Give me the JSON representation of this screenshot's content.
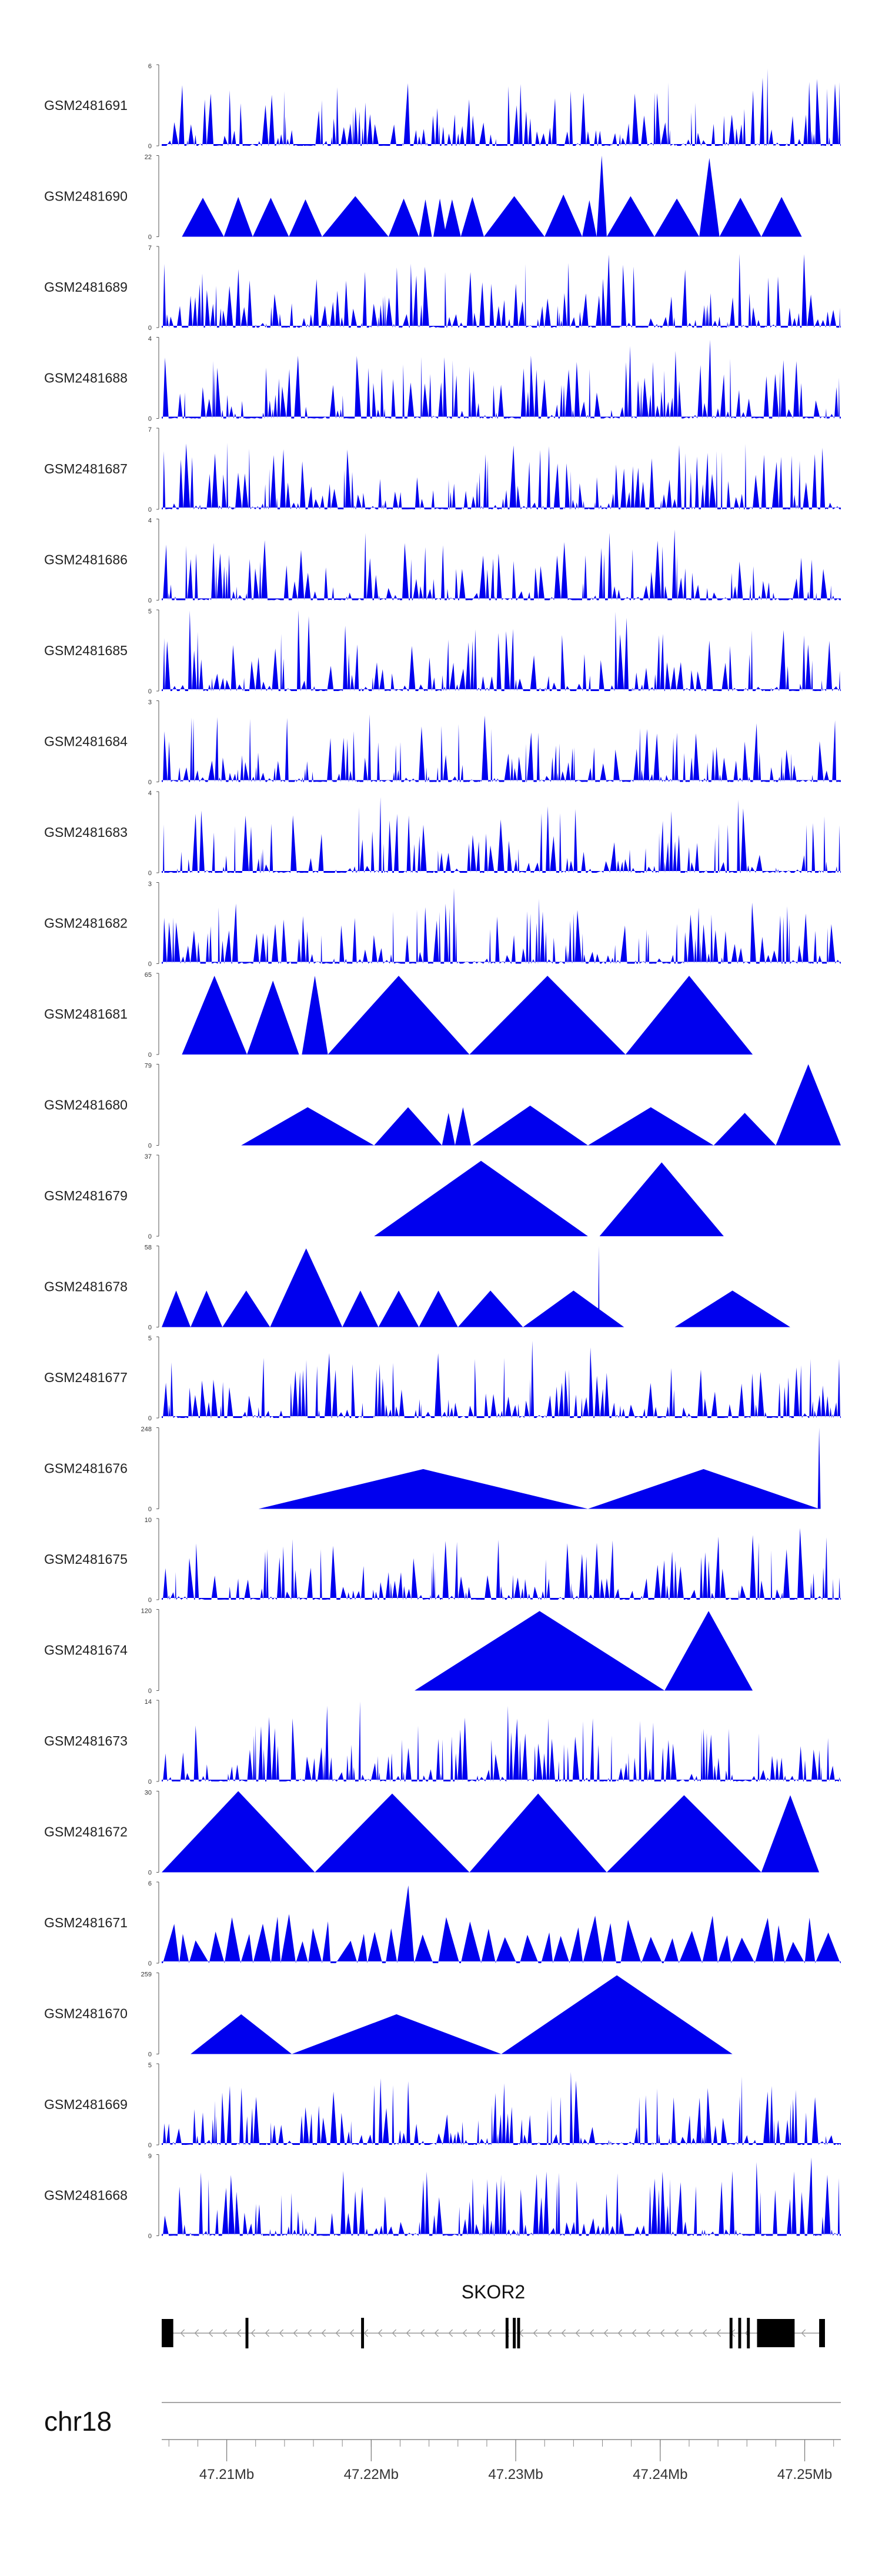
{
  "chart_data": {
    "type": "area",
    "chromosome": "chr18",
    "region_mb": [
      47.2055,
      47.2525
    ],
    "fill_color": "#0000ee",
    "tracks": [
      {
        "name": "GSM2481691",
        "ymax": "6",
        "ymin": "0",
        "peak": 6,
        "style": "dense",
        "seed": 1
      },
      {
        "name": "GSM2481690",
        "ymax": "22",
        "ymin": "0",
        "peak": 22,
        "style": "sparse",
        "seed": 2,
        "segments": [
          [
            47.2069,
            47.2098,
            0.48
          ],
          [
            47.2098,
            47.2118,
            0.49
          ],
          [
            47.2118,
            47.2143,
            0.48
          ],
          [
            47.2143,
            47.2166,
            0.46
          ],
          [
            47.2166,
            47.2212,
            0.5
          ],
          [
            47.2212,
            47.2233,
            0.47
          ],
          [
            47.2233,
            47.2242,
            0.46
          ],
          [
            47.2243,
            47.2252,
            0.47
          ],
          [
            47.225,
            47.2262,
            0.46
          ],
          [
            47.2262,
            47.2278,
            0.49
          ],
          [
            47.2278,
            47.232,
            0.5
          ],
          [
            47.232,
            47.2346,
            0.52
          ],
          [
            47.2346,
            47.2356,
            0.45
          ],
          [
            47.2356,
            47.2363,
            1.0
          ],
          [
            47.2363,
            47.2396,
            0.5
          ],
          [
            47.2396,
            47.2427,
            0.47
          ],
          [
            47.2427,
            47.2441,
            0.97
          ],
          [
            47.2441,
            47.247,
            0.48
          ],
          [
            47.247,
            47.2498,
            0.49
          ]
        ]
      },
      {
        "name": "GSM2481689",
        "ymax": "7",
        "ymin": "0",
        "peak": 7,
        "style": "dense",
        "seed": 3
      },
      {
        "name": "GSM2481688",
        "ymax": "4",
        "ymin": "0",
        "peak": 4,
        "style": "dense",
        "seed": 4
      },
      {
        "name": "GSM2481687",
        "ymax": "7",
        "ymin": "0",
        "peak": 7,
        "style": "dense",
        "seed": 5
      },
      {
        "name": "GSM2481686",
        "ymax": "4",
        "ymin": "0",
        "peak": 4,
        "style": "dense",
        "seed": 6
      },
      {
        "name": "GSM2481685",
        "ymax": "5",
        "ymin": "0",
        "peak": 5,
        "style": "dense",
        "seed": 7
      },
      {
        "name": "GSM2481684",
        "ymax": "3",
        "ymin": "0",
        "peak": 3,
        "style": "dense",
        "seed": 8
      },
      {
        "name": "GSM2481683",
        "ymax": "4",
        "ymin": "0",
        "peak": 4,
        "style": "dense",
        "seed": 9
      },
      {
        "name": "GSM2481682",
        "ymax": "3",
        "ymin": "0",
        "peak": 3,
        "style": "dense",
        "seed": 10
      },
      {
        "name": "GSM2481681",
        "ymax": "65",
        "ymin": "0",
        "peak": 65,
        "style": "sparse",
        "seed": 11,
        "segments": [
          [
            47.2069,
            47.2114,
            0.97
          ],
          [
            47.2114,
            47.215,
            0.91
          ],
          [
            47.215,
            47.2152,
            0.0
          ],
          [
            47.2152,
            47.217,
            0.97
          ],
          [
            47.217,
            47.2268,
            0.97
          ],
          [
            47.2268,
            47.2376,
            0.97
          ],
          [
            47.2376,
            47.2464,
            0.97
          ]
        ]
      },
      {
        "name": "GSM2481680",
        "ymax": "79",
        "ymin": "0",
        "peak": 79,
        "style": "sparse",
        "seed": 12,
        "segments": [
          [
            47.211,
            47.2202,
            0.47
          ],
          [
            47.2202,
            47.2249,
            0.47
          ],
          [
            47.2249,
            47.2258,
            0.4
          ],
          [
            47.2258,
            47.2269,
            0.47
          ],
          [
            47.227,
            47.235,
            0.49
          ],
          [
            47.235,
            47.2437,
            0.47
          ],
          [
            47.2437,
            47.248,
            0.4
          ],
          [
            47.248,
            47.2525,
            1.0
          ]
        ]
      },
      {
        "name": "GSM2481679",
        "ymax": "37",
        "ymin": "0",
        "peak": 37,
        "style": "sparse",
        "seed": 13,
        "segments": [
          [
            47.2202,
            47.235,
            0.93
          ],
          [
            47.235,
            47.2358,
            0.0
          ],
          [
            47.2358,
            47.2444,
            0.91
          ]
        ]
      },
      {
        "name": "GSM2481678",
        "ymax": "58",
        "ymin": "0",
        "peak": 58,
        "style": "sparse",
        "seed": 14,
        "segments": [
          [
            47.2055,
            47.2075,
            0.45
          ],
          [
            47.2075,
            47.2097,
            0.45
          ],
          [
            47.2097,
            47.213,
            0.45
          ],
          [
            47.213,
            47.218,
            0.97
          ],
          [
            47.218,
            47.2205,
            0.45
          ],
          [
            47.2205,
            47.2233,
            0.45
          ],
          [
            47.2233,
            47.226,
            0.45
          ],
          [
            47.226,
            47.2305,
            0.45
          ],
          [
            47.2305,
            47.2375,
            0.45
          ],
          [
            47.2357,
            47.2358,
            1.0
          ],
          [
            47.2375,
            47.241,
            0.0
          ],
          [
            47.241,
            47.249,
            0.45
          ]
        ]
      },
      {
        "name": "GSM2481677",
        "ymax": "5",
        "ymin": "0",
        "peak": 5,
        "style": "dense",
        "seed": 15
      },
      {
        "name": "GSM2481676",
        "ymax": "248",
        "ymin": "0",
        "peak": 248,
        "style": "sparse",
        "seed": 16,
        "segments": [
          [
            47.2122,
            47.235,
            0.49
          ],
          [
            47.235,
            47.251,
            0.49
          ],
          [
            47.2509,
            47.2511,
            1.0
          ]
        ]
      },
      {
        "name": "GSM2481675",
        "ymax": "10",
        "ymin": "0",
        "peak": 10,
        "style": "dense",
        "seed": 17
      },
      {
        "name": "GSM2481674",
        "ymax": "120",
        "ymin": "0",
        "peak": 120,
        "style": "sparse",
        "seed": 18,
        "segments": [
          [
            47.223,
            47.2403,
            0.98
          ],
          [
            47.2403,
            47.2464,
            0.98
          ]
        ]
      },
      {
        "name": "GSM2481673",
        "ymax": "14",
        "ymin": "0",
        "peak": 14,
        "style": "dense",
        "seed": 19
      },
      {
        "name": "GSM2481672",
        "ymax": "30",
        "ymin": "0",
        "peak": 30,
        "style": "sparse",
        "seed": 20,
        "segments": [
          [
            47.2055,
            47.2161,
            1.0
          ],
          [
            47.2161,
            47.2268,
            0.97
          ],
          [
            47.2268,
            47.2363,
            0.97
          ],
          [
            47.2363,
            47.247,
            0.95
          ],
          [
            47.247,
            47.251,
            0.95
          ]
        ]
      },
      {
        "name": "GSM2481671",
        "ymax": "6",
        "ymin": "0",
        "peak": 6,
        "style": "mixed",
        "seed": 21
      },
      {
        "name": "GSM2481670",
        "ymax": "259",
        "ymin": "0",
        "peak": 259,
        "style": "sparse",
        "seed": 22,
        "segments": [
          [
            47.2075,
            47.2145,
            0.49
          ],
          [
            47.2145,
            47.229,
            0.49
          ],
          [
            47.229,
            47.245,
            0.97
          ]
        ]
      },
      {
        "name": "GSM2481669",
        "ymax": "5",
        "ymin": "0",
        "peak": 5,
        "style": "dense",
        "seed": 23
      },
      {
        "name": "GSM2481668",
        "ymax": "9",
        "ymin": "0",
        "peak": 9,
        "style": "dense",
        "seed": 24
      }
    ],
    "gene": {
      "name": "SKOR2",
      "strand": "-",
      "exons_mb": [
        [
          47.2055,
          47.2063
        ],
        [
          47.2113,
          47.2115
        ],
        [
          47.2193,
          47.2195
        ],
        [
          47.2293,
          47.2295
        ],
        [
          47.2298,
          47.23
        ],
        [
          47.2301,
          47.2303
        ],
        [
          47.2448,
          47.245
        ],
        [
          47.2454,
          47.2456
        ],
        [
          47.246,
          47.2462
        ],
        [
          47.2467,
          47.2493
        ],
        [
          47.251,
          47.2514
        ]
      ]
    },
    "axis": {
      "ticks_mb": [
        47.21,
        47.22,
        47.23,
        47.24,
        47.25
      ],
      "tick_labels": [
        "47.21Mb",
        "47.22Mb",
        "47.23Mb",
        "47.24Mb",
        "47.25Mb"
      ],
      "minor_step_mb": 0.002
    }
  }
}
